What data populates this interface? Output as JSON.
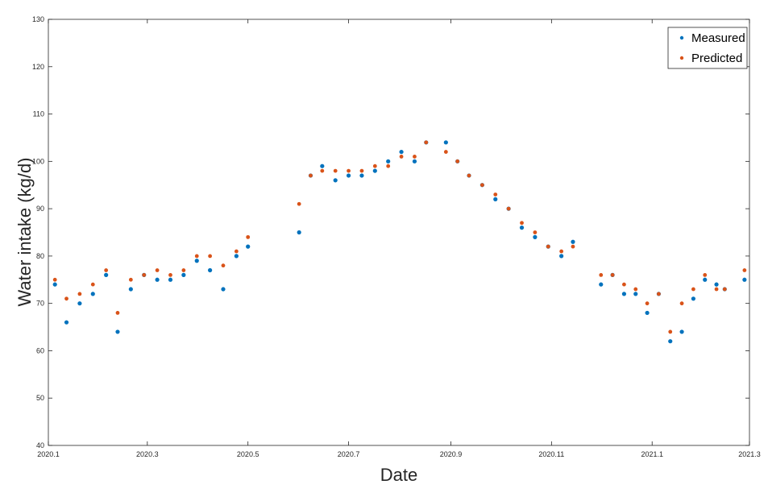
{
  "colors": {
    "measured": "#0072BD",
    "predicted": "#D95319"
  },
  "chart_data": {
    "type": "scatter",
    "title": "",
    "xlabel": "Date",
    "ylabel": "Water intake (kg/d)",
    "ylim": [
      40,
      130
    ],
    "xlim": [
      "2020-01-01",
      "2021-03-01"
    ],
    "yticks": [
      40,
      50,
      60,
      70,
      80,
      90,
      100,
      110,
      120,
      130
    ],
    "xticks": [
      {
        "date": "2020-01-01",
        "label": "2020.1"
      },
      {
        "date": "2020-03-01",
        "label": "2020.3"
      },
      {
        "date": "2020-05-01",
        "label": "2020.5"
      },
      {
        "date": "2020-07-01",
        "label": "2020.7"
      },
      {
        "date": "2020-09-01",
        "label": "2020.9"
      },
      {
        "date": "2020-11-01",
        "label": "2020.11"
      },
      {
        "date": "2021-01-01",
        "label": "2021.1"
      },
      {
        "date": "2021-03-01",
        "label": "2021.3"
      }
    ],
    "grid": false,
    "legend_position": "top-right",
    "series": [
      {
        "name": "Measured",
        "x": [
          "2020-01-05",
          "2020-01-12",
          "2020-01-20",
          "2020-01-28",
          "2020-02-05",
          "2020-02-12",
          "2020-02-20",
          "2020-02-28",
          "2020-03-07",
          "2020-03-15",
          "2020-03-23",
          "2020-03-31",
          "2020-04-08",
          "2020-04-16",
          "2020-04-24",
          "2020-05-01",
          "2020-06-01",
          "2020-06-08",
          "2020-06-15",
          "2020-06-23",
          "2020-07-01",
          "2020-07-09",
          "2020-07-17",
          "2020-07-25",
          "2020-08-02",
          "2020-08-10",
          "2020-08-17",
          "2020-08-29",
          "2020-09-05",
          "2020-09-12",
          "2020-09-20",
          "2020-09-28",
          "2020-10-06",
          "2020-10-14",
          "2020-10-22",
          "2020-10-30",
          "2020-11-07",
          "2020-11-14",
          "2020-12-01",
          "2020-12-08",
          "2020-12-15",
          "2020-12-22",
          "2020-12-29",
          "2021-01-05",
          "2021-01-12",
          "2021-01-19",
          "2021-01-26",
          "2021-02-02",
          "2021-02-09",
          "2021-02-14",
          "2021-02-26"
        ],
        "y": [
          74,
          66,
          70,
          72,
          76,
          64,
          73,
          76,
          75,
          75,
          76,
          79,
          77,
          73,
          80,
          82,
          85,
          97,
          99,
          96,
          97,
          97,
          98,
          100,
          102,
          100,
          104,
          104,
          100,
          97,
          95,
          92,
          90,
          86,
          84,
          82,
          80,
          83,
          74,
          76,
          72,
          72,
          68,
          72,
          62,
          64,
          71,
          75,
          74,
          73,
          75
        ]
      },
      {
        "name": "Predicted",
        "x": [
          "2020-01-05",
          "2020-01-12",
          "2020-01-20",
          "2020-01-28",
          "2020-02-05",
          "2020-02-12",
          "2020-02-20",
          "2020-02-28",
          "2020-03-07",
          "2020-03-15",
          "2020-03-23",
          "2020-03-31",
          "2020-04-08",
          "2020-04-16",
          "2020-04-24",
          "2020-05-01",
          "2020-06-01",
          "2020-06-08",
          "2020-06-15",
          "2020-06-23",
          "2020-07-01",
          "2020-07-09",
          "2020-07-17",
          "2020-07-25",
          "2020-08-02",
          "2020-08-10",
          "2020-08-17",
          "2020-08-29",
          "2020-09-05",
          "2020-09-12",
          "2020-09-20",
          "2020-09-28",
          "2020-10-06",
          "2020-10-14",
          "2020-10-22",
          "2020-10-30",
          "2020-11-07",
          "2020-11-14",
          "2020-12-01",
          "2020-12-08",
          "2020-12-15",
          "2020-12-22",
          "2020-12-29",
          "2021-01-05",
          "2021-01-12",
          "2021-01-19",
          "2021-01-26",
          "2021-02-02",
          "2021-02-09",
          "2021-02-14",
          "2021-02-26"
        ],
        "y": [
          75,
          71,
          72,
          74,
          77,
          68,
          75,
          76,
          77,
          76,
          77,
          80,
          80,
          78,
          81,
          84,
          91,
          97,
          98,
          98,
          98,
          98,
          99,
          99,
          101,
          101,
          104,
          102,
          100,
          97,
          95,
          93,
          90,
          87,
          85,
          82,
          81,
          82,
          76,
          76,
          74,
          73,
          70,
          72,
          64,
          70,
          73,
          76,
          73,
          73,
          77
        ]
      }
    ]
  }
}
